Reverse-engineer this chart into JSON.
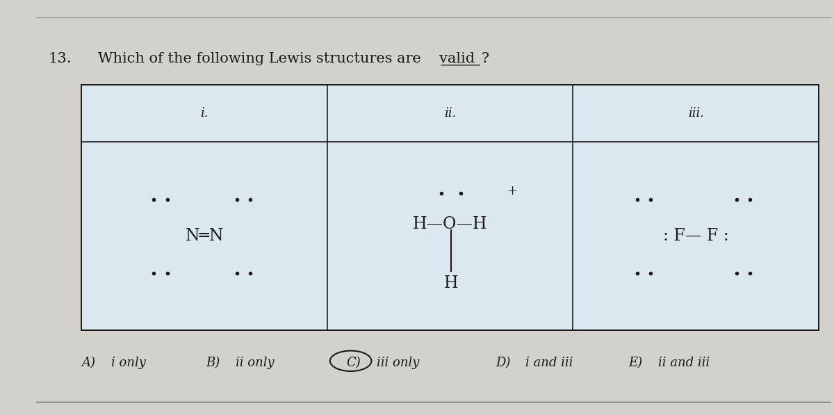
{
  "question_number": "13.",
  "question_text": "Which of the following Lewis structures are ",
  "question_bold": "valid",
  "question_suffix": "?",
  "bg_color": "#d4d0cc",
  "table_bg": "#dce8f0",
  "answer_circle": "C",
  "answers": [
    {
      "label": "A)",
      "text": "i only"
    },
    {
      "label": "B)",
      "text": "ii only"
    },
    {
      "label": "C)",
      "text": "iii only"
    },
    {
      "label": "D)",
      "text": "i and iii"
    },
    {
      "label": "E)",
      "text": "ii and iii"
    }
  ],
  "col_headers": [
    "i.",
    "ii.",
    "iii."
  ],
  "font_color": "#1a1a1a",
  "title_fontsize": 15,
  "answer_fontsize": 13,
  "table_fontsize": 13,
  "dot_size": 3
}
